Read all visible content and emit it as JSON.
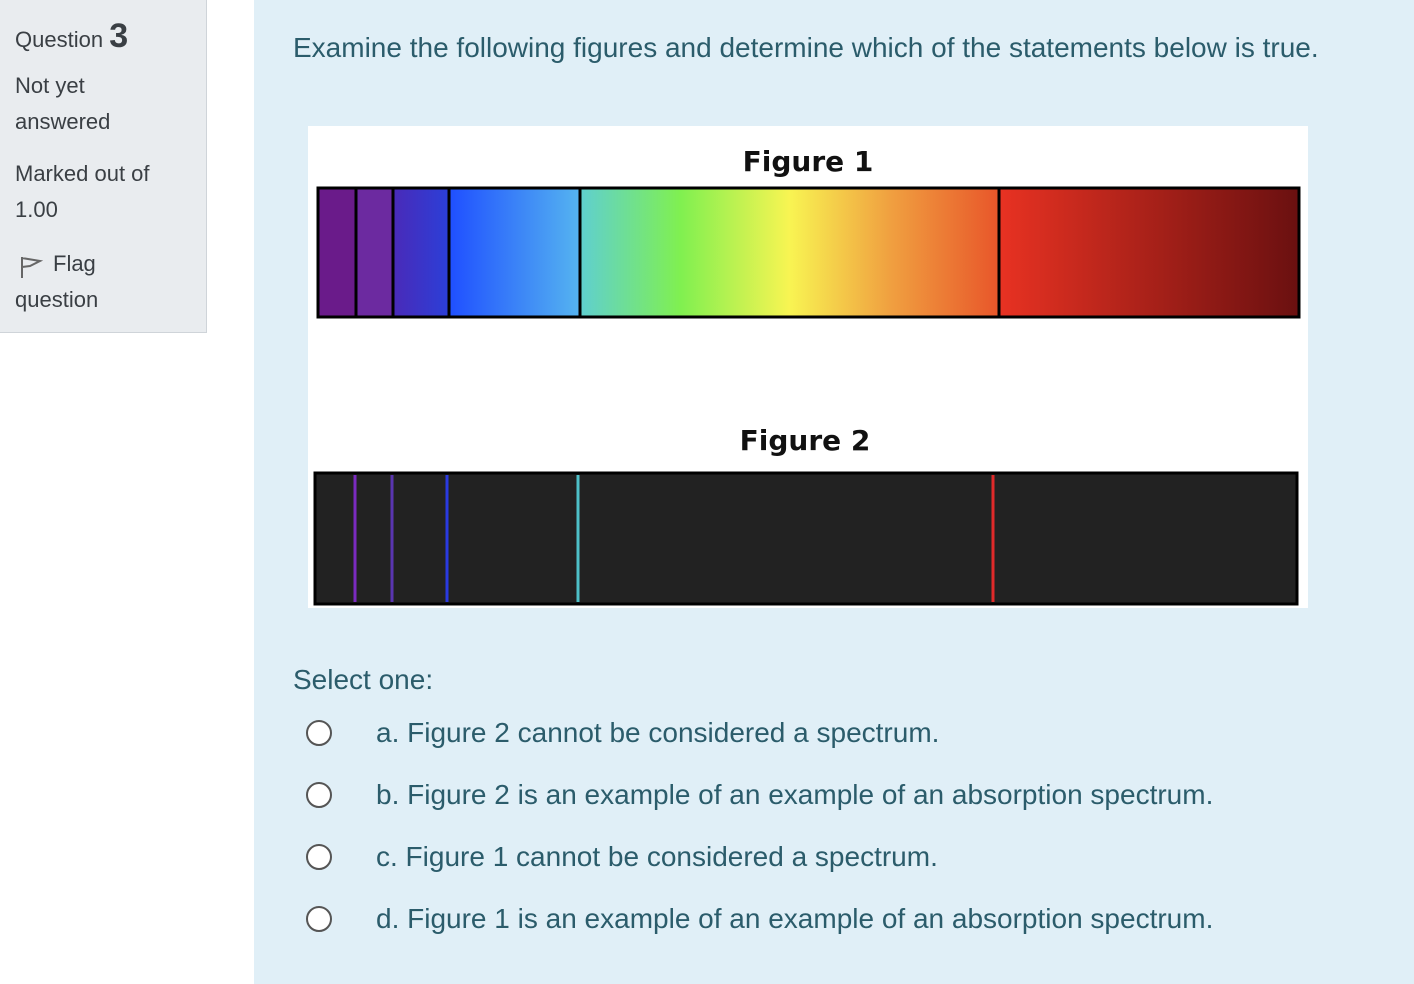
{
  "info": {
    "label": "Question",
    "number": "3",
    "status": "Not yet answered",
    "grade": "Marked out of 1.00",
    "flag": "Flag question"
  },
  "question": {
    "text": "Examine the following figures and determine which of the statements below is true.",
    "figures": [
      {
        "title": "Figure 1"
      },
      {
        "title": "Figure 2"
      }
    ],
    "prompt": "Select one:",
    "options": [
      "a. Figure 2 cannot be considered a spectrum.",
      "b. Figure 2 is an example of an example of an absorption spectrum.",
      "c. Figure 1 cannot be considered a spectrum.",
      "d. Figure 1 is an example of an example of an absorption spectrum."
    ]
  }
}
